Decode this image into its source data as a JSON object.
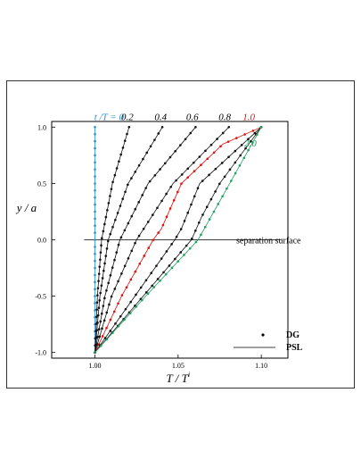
{
  "chart_data": {
    "type": "line",
    "xlabel": "T / T",
    "xlabel_sup": "i",
    "ylabel": "y / a",
    "xlim": [
      0.974,
      1.116
    ],
    "ylim": [
      -1.05,
      1.05
    ],
    "x_ticks": [
      1.0,
      1.05,
      1.1
    ],
    "x_tick_labels": [
      "1.00",
      "1.05",
      "1.10"
    ],
    "y_ticks": [
      -1.0,
      -0.5,
      0.0,
      0.5,
      1.0
    ],
    "y_tick_labels": [
      "-1.0",
      "-0.5",
      "0.0",
      "0.5",
      "1.0"
    ],
    "time_label_prefix": "t /T = ",
    "annotation": "separation surface",
    "annotation_y": 0.0,
    "annotation_line_x": [
      0.9935,
      1.112
    ],
    "legend": {
      "position": "bottom-right",
      "entries": [
        {
          "label": "DG",
          "marker": "dot"
        },
        {
          "label": "PSL",
          "marker": "line"
        }
      ]
    },
    "series": [
      {
        "name": "0",
        "color": "#2a8fd6",
        "label_x": 1.0085,
        "label_y": 1.06,
        "points": [
          [
            1.0,
            -1.0
          ],
          [
            1.0,
            1.0
          ]
        ]
      },
      {
        "name": "0.2",
        "color": "#111111",
        "label_x": 1.0195,
        "label_y": 1.06,
        "points": [
          [
            1.0,
            -1.0
          ],
          [
            1.0015,
            -0.5
          ],
          [
            1.004,
            0.0
          ],
          [
            1.0105,
            0.5
          ],
          [
            1.0205,
            1.0
          ]
        ]
      },
      {
        "name": "0.4",
        "color": "#111111",
        "label_x": 1.0395,
        "label_y": 1.06,
        "points": [
          [
            1.0,
            -1.0
          ],
          [
            1.003,
            -0.5
          ],
          [
            1.008,
            0.0
          ],
          [
            1.02,
            0.5
          ],
          [
            1.0405,
            1.0
          ]
        ]
      },
      {
        "name": "0.6",
        "color": "#111111",
        "label_x": 1.0585,
        "label_y": 1.06,
        "points": [
          [
            1.0,
            -1.0
          ],
          [
            1.006,
            -0.5
          ],
          [
            1.015,
            0.0
          ],
          [
            1.032,
            0.5
          ],
          [
            1.0605,
            1.0
          ]
        ]
      },
      {
        "name": "0.8",
        "color": "#111111",
        "label_x": 1.078,
        "label_y": 1.06,
        "points": [
          [
            1.0,
            -1.0
          ],
          [
            1.01,
            -0.5
          ],
          [
            1.025,
            0.0
          ],
          [
            1.047,
            0.5
          ],
          [
            1.0805,
            1.0
          ]
        ]
      },
      {
        "name": "1.0",
        "color": "#dd1111",
        "label_x": 1.0925,
        "label_y": 1.06,
        "points": [
          [
            1.0,
            -1.0
          ],
          [
            1.016,
            -0.5
          ],
          [
            1.035,
            0.0
          ],
          [
            1.04,
            0.1
          ],
          [
            1.052,
            0.5
          ],
          [
            1.077,
            0.85
          ],
          [
            1.1,
            1.0
          ]
        ]
      },
      {
        "name": "",
        "color": "#111111",
        "label_x": null,
        "label_y": null,
        "points": [
          [
            1.0,
            -1.0
          ],
          [
            1.024,
            -0.5
          ],
          [
            1.048,
            0.0
          ],
          [
            1.052,
            0.1
          ],
          [
            1.063,
            0.5
          ],
          [
            1.1,
            1.0
          ]
        ]
      },
      {
        "name": "",
        "color": "#111111",
        "label_x": null,
        "label_y": null,
        "points": [
          [
            1.0,
            -1.0
          ],
          [
            1.029,
            -0.5
          ],
          [
            1.058,
            0.0
          ],
          [
            1.064,
            0.2
          ],
          [
            1.075,
            0.5
          ],
          [
            1.1,
            1.0
          ]
        ]
      },
      {
        "name": "2.0",
        "color": "#1fa060",
        "label_x": 1.0935,
        "label_y": 0.83,
        "points": [
          [
            1.0,
            -1.0
          ],
          [
            1.0305,
            -0.5
          ],
          [
            1.062,
            0.0
          ],
          [
            1.1,
            1.0
          ]
        ]
      }
    ]
  }
}
